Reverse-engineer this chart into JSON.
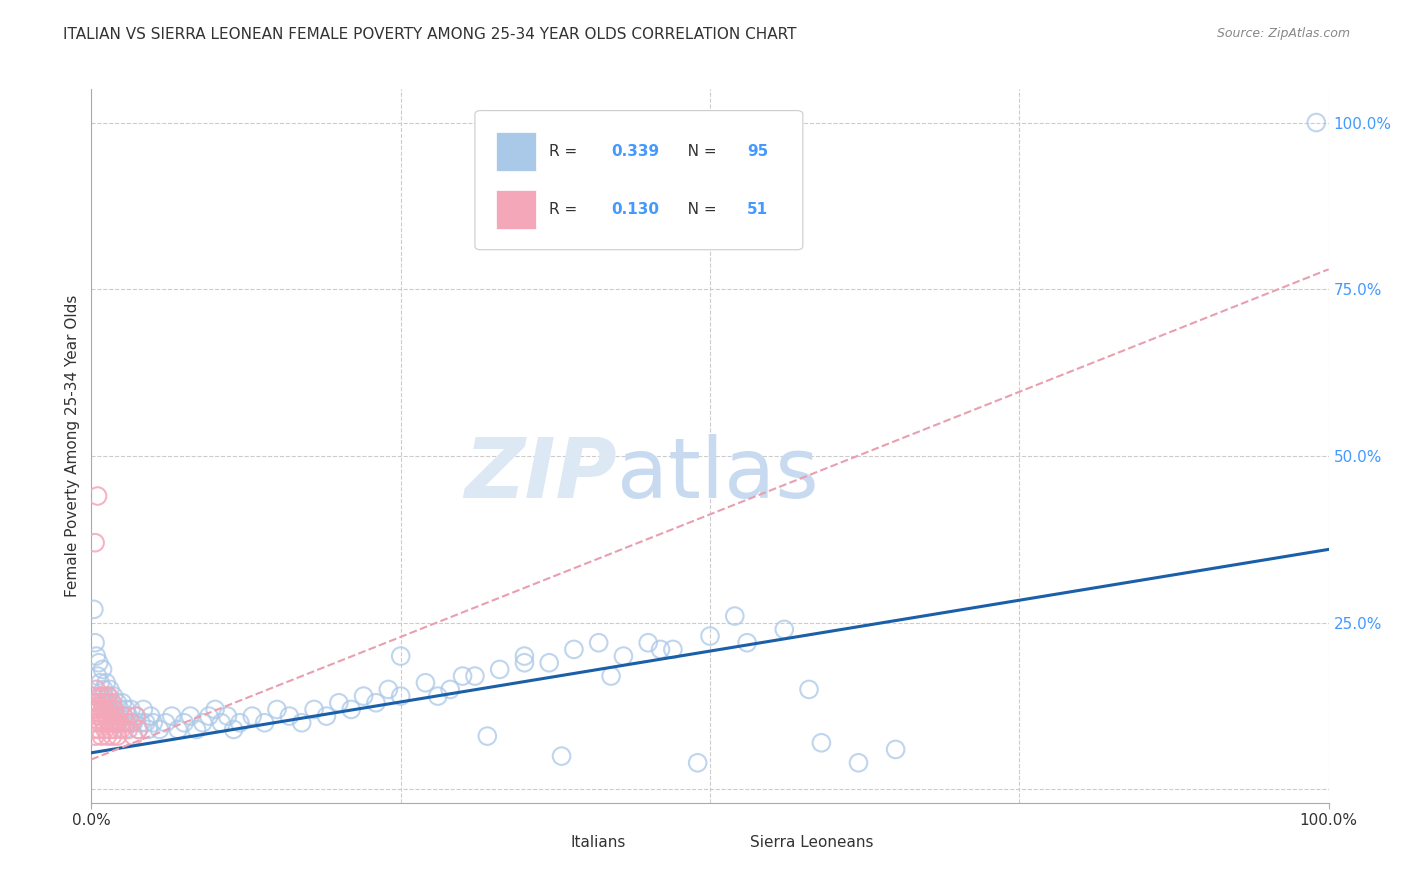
{
  "title": "ITALIAN VS SIERRA LEONEAN FEMALE POVERTY AMONG 25-34 YEAR OLDS CORRELATION CHART",
  "source": "Source: ZipAtlas.com",
  "ylabel": "Female Poverty Among 25-34 Year Olds",
  "xlim": [
    0,
    1
  ],
  "ylim": [
    -0.02,
    1.05
  ],
  "grid_color": "#cccccc",
  "background_color": "#ffffff",
  "italian_color": "#aac8e8",
  "sierra_color": "#f4a7b9",
  "italian_line_color": "#1a5fa8",
  "sierra_line_color": "#e8a0b0",
  "watermark_zip_color": "#dde8f5",
  "watermark_atlas_color": "#c8daf0",
  "italian_R": 0.339,
  "italian_N": 95,
  "sierra_R": 0.13,
  "sierra_N": 51,
  "italian_line_x0": 0.0,
  "italian_line_y0": 0.055,
  "italian_line_x1": 1.0,
  "italian_line_y1": 0.36,
  "sierra_line_x0": 0.0,
  "sierra_line_y0": 0.045,
  "sierra_line_x1": 1.0,
  "sierra_line_y1": 0.78,
  "italian_x": [
    0.002,
    0.003,
    0.004,
    0.005,
    0.006,
    0.007,
    0.008,
    0.009,
    0.01,
    0.011,
    0.012,
    0.013,
    0.014,
    0.015,
    0.016,
    0.017,
    0.018,
    0.019,
    0.02,
    0.021,
    0.022,
    0.023,
    0.024,
    0.025,
    0.026,
    0.027,
    0.028,
    0.029,
    0.03,
    0.032,
    0.034,
    0.036,
    0.038,
    0.04,
    0.042,
    0.044,
    0.046,
    0.048,
    0.05,
    0.055,
    0.06,
    0.065,
    0.07,
    0.075,
    0.08,
    0.085,
    0.09,
    0.095,
    0.1,
    0.105,
    0.11,
    0.115,
    0.12,
    0.13,
    0.14,
    0.15,
    0.16,
    0.17,
    0.18,
    0.19,
    0.2,
    0.21,
    0.22,
    0.23,
    0.24,
    0.25,
    0.27,
    0.29,
    0.31,
    0.33,
    0.35,
    0.37,
    0.39,
    0.41,
    0.43,
    0.45,
    0.47,
    0.5,
    0.53,
    0.56,
    0.59,
    0.62,
    0.65,
    0.35,
    0.3,
    0.25,
    0.28,
    0.32,
    0.38,
    0.42,
    0.46,
    0.49,
    0.52,
    0.58,
    0.99
  ],
  "italian_y": [
    0.27,
    0.22,
    0.2,
    0.17,
    0.19,
    0.16,
    0.14,
    0.18,
    0.15,
    0.13,
    0.16,
    0.14,
    0.12,
    0.15,
    0.13,
    0.11,
    0.14,
    0.12,
    0.1,
    0.13,
    0.11,
    0.12,
    0.1,
    0.13,
    0.11,
    0.09,
    0.12,
    0.1,
    0.11,
    0.12,
    0.1,
    0.11,
    0.09,
    0.1,
    0.12,
    0.1,
    0.09,
    0.11,
    0.1,
    0.09,
    0.1,
    0.11,
    0.09,
    0.1,
    0.11,
    0.09,
    0.1,
    0.11,
    0.12,
    0.1,
    0.11,
    0.09,
    0.1,
    0.11,
    0.1,
    0.12,
    0.11,
    0.1,
    0.12,
    0.11,
    0.13,
    0.12,
    0.14,
    0.13,
    0.15,
    0.14,
    0.16,
    0.15,
    0.17,
    0.18,
    0.2,
    0.19,
    0.21,
    0.22,
    0.2,
    0.22,
    0.21,
    0.23,
    0.22,
    0.24,
    0.07,
    0.04,
    0.06,
    0.19,
    0.17,
    0.2,
    0.14,
    0.08,
    0.05,
    0.17,
    0.21,
    0.04,
    0.26,
    0.15,
    1.0
  ],
  "sierra_x": [
    0.001,
    0.002,
    0.003,
    0.004,
    0.005,
    0.006,
    0.007,
    0.008,
    0.009,
    0.01,
    0.011,
    0.012,
    0.013,
    0.014,
    0.015,
    0.016,
    0.017,
    0.018,
    0.019,
    0.02,
    0.021,
    0.022,
    0.024,
    0.026,
    0.028,
    0.03,
    0.032,
    0.034,
    0.036,
    0.038,
    0.001,
    0.002,
    0.003,
    0.004,
    0.005,
    0.006,
    0.007,
    0.008,
    0.009,
    0.01,
    0.011,
    0.012,
    0.013,
    0.014,
    0.015,
    0.016,
    0.017,
    0.018,
    0.019,
    0.02,
    0.005
  ],
  "sierra_y": [
    0.12,
    0.09,
    0.08,
    0.1,
    0.11,
    0.09,
    0.1,
    0.08,
    0.12,
    0.1,
    0.09,
    0.11,
    0.08,
    0.1,
    0.09,
    0.11,
    0.08,
    0.1,
    0.09,
    0.11,
    0.08,
    0.1,
    0.09,
    0.11,
    0.1,
    0.09,
    0.1,
    0.08,
    0.11,
    0.09,
    0.14,
    0.12,
    0.13,
    0.15,
    0.13,
    0.12,
    0.14,
    0.11,
    0.13,
    0.14,
    0.12,
    0.11,
    0.13,
    0.14,
    0.12,
    0.1,
    0.13,
    0.12,
    0.11,
    0.1,
    0.44
  ]
}
